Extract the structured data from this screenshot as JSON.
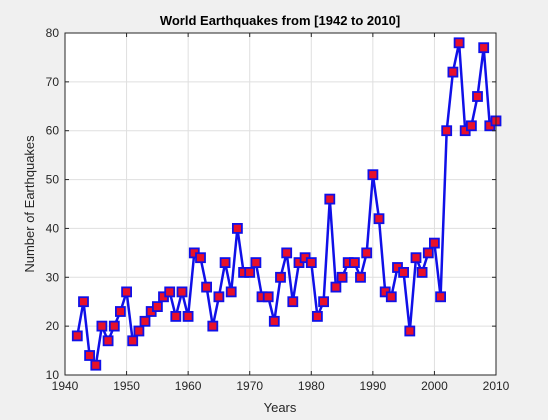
{
  "chart_data": {
    "type": "line",
    "title": "World Earthquakes from [1942 to 2010]",
    "xlabel": "Years",
    "ylabel": "Number of Earthquakes",
    "xlim": [
      1940,
      2010
    ],
    "ylim": [
      10,
      80
    ],
    "xticks": [
      1940,
      1950,
      1960,
      1970,
      1980,
      1990,
      2000,
      2010
    ],
    "yticks": [
      10,
      20,
      30,
      40,
      50,
      60,
      70,
      80
    ],
    "grid": true,
    "line_color": "#1010e8",
    "marker_face_color": "#e8102a",
    "marker_edge_color": "#1010e8",
    "marker": "square",
    "x": [
      1942,
      1943,
      1944,
      1945,
      1946,
      1947,
      1948,
      1949,
      1950,
      1951,
      1952,
      1953,
      1954,
      1955,
      1956,
      1957,
      1958,
      1959,
      1960,
      1961,
      1962,
      1963,
      1964,
      1965,
      1966,
      1967,
      1968,
      1969,
      1970,
      1971,
      1972,
      1973,
      1974,
      1975,
      1976,
      1977,
      1978,
      1979,
      1980,
      1981,
      1982,
      1983,
      1984,
      1985,
      1986,
      1987,
      1988,
      1989,
      1990,
      1991,
      1992,
      1993,
      1994,
      1995,
      1996,
      1997,
      1998,
      1999,
      2000,
      2001,
      2002,
      2003,
      2004,
      2005,
      2006,
      2007,
      2008,
      2009,
      2010
    ],
    "y": [
      18,
      25,
      14,
      12,
      20,
      17,
      20,
      23,
      27,
      17,
      19,
      21,
      23,
      24,
      26,
      27,
      22,
      27,
      22,
      35,
      34,
      28,
      20,
      26,
      33,
      27,
      40,
      31,
      31,
      33,
      26,
      26,
      21,
      30,
      35,
      25,
      33,
      34,
      33,
      22,
      25,
      46,
      28,
      30,
      33,
      33,
      30,
      35,
      51,
      42,
      27,
      26,
      32,
      31,
      19,
      34,
      31,
      35,
      37,
      26,
      60,
      72,
      78,
      60,
      61,
      67,
      77,
      61,
      62
    ]
  }
}
